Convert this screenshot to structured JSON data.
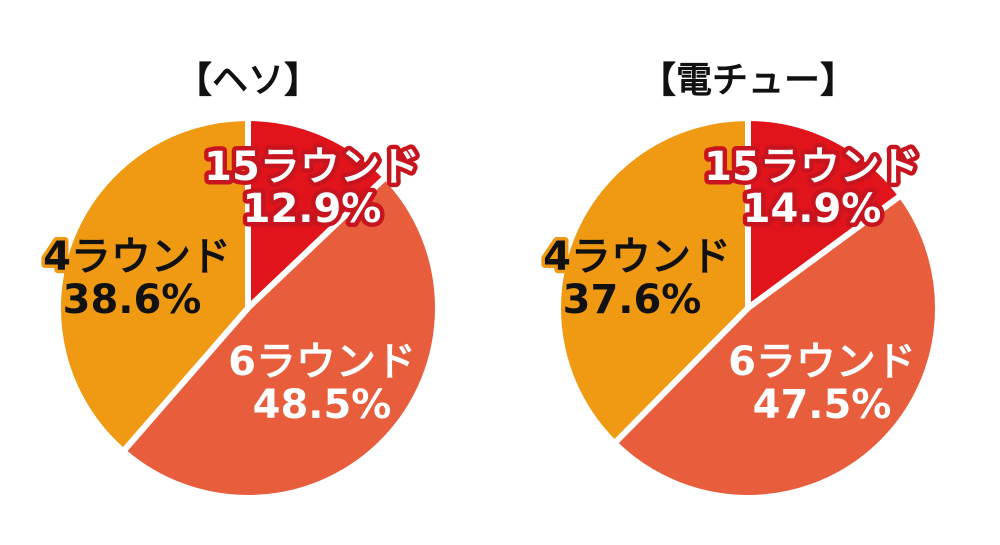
{
  "chart_data": [
    {
      "type": "pie",
      "title": "【ヘソ】",
      "slices": [
        {
          "label": "15ラウンド",
          "value": 12.9,
          "value_text": "12.9%",
          "color": "#e1141c"
        },
        {
          "label": "6ラウンド",
          "value": 48.5,
          "value_text": "48.5%",
          "color": "#e85d3c"
        },
        {
          "label": "4ラウンド",
          "value": 38.6,
          "value_text": "38.6%",
          "color": "#ef9a12"
        }
      ],
      "start": "12 o'clock",
      "direction": "clockwise",
      "legend": "none (labels on slices)"
    },
    {
      "type": "pie",
      "title": "【電チュー】",
      "slices": [
        {
          "label": "15ラウンド",
          "value": 14.9,
          "value_text": "14.9%",
          "color": "#e1141c"
        },
        {
          "label": "6ラウンド",
          "value": 47.5,
          "value_text": "47.5%",
          "color": "#e85d3c"
        },
        {
          "label": "4ラウンド",
          "value": 37.6,
          "value_text": "37.6%",
          "color": "#ef9a12"
        }
      ],
      "start": "12 o'clock",
      "direction": "clockwise",
      "legend": "none (labels on slices)"
    }
  ]
}
